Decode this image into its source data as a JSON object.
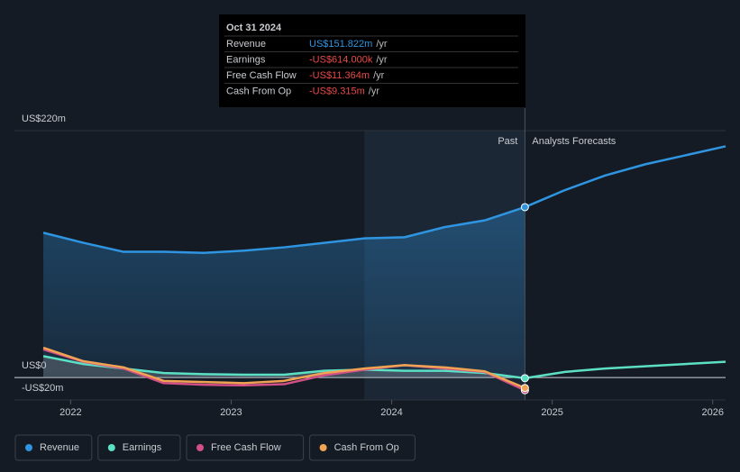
{
  "chart_data": {
    "type": "line",
    "x": [
      2021.83,
      2022.08,
      2022.33,
      2022.58,
      2022.83,
      2023.08,
      2023.33,
      2023.58,
      2023.83,
      2024.08,
      2024.33,
      2024.58,
      2024.83,
      2025.08,
      2025.33,
      2025.58,
      2025.83,
      2026.08
    ],
    "xlim": [
      2021.65,
      2026.08
    ],
    "xticks": [
      2022,
      2023,
      2024,
      2025,
      2026
    ],
    "ylim": [
      -20,
      220
    ],
    "yticks": [
      {
        "value": 220,
        "label": "US$220m"
      },
      {
        "value": 0,
        "label": "US$0"
      },
      {
        "value": -20,
        "label": "-US$20m"
      }
    ],
    "past_label": "Past",
    "forecast_label": "Analysts Forecasts",
    "series": [
      {
        "name": "Revenue",
        "color": "#2f95e1",
        "values": [
          129,
          120,
          112,
          112,
          111,
          113,
          116,
          120,
          124,
          125,
          134,
          140,
          151.822,
          167,
          180,
          190,
          198,
          206
        ]
      },
      {
        "name": "Earnings",
        "color": "#5ce0c3",
        "values": [
          19,
          12,
          8,
          4,
          3,
          2.5,
          2.5,
          6,
          7,
          6,
          6,
          4,
          -0.614,
          5,
          8,
          10,
          12,
          14
        ]
      },
      {
        "name": "Free Cash Flow",
        "color": "#d24f87",
        "values": [
          25,
          14,
          8,
          -5,
          -6.5,
          -7,
          -6,
          2,
          7,
          11,
          8,
          5,
          -11.364,
          null,
          null,
          null,
          null,
          null
        ]
      },
      {
        "name": "Cash From Op",
        "color": "#f0a353",
        "values": [
          26.5,
          14.5,
          9,
          -3,
          -4,
          -5,
          -3,
          4,
          8,
          11,
          9,
          5.5,
          -9.315,
          null,
          null,
          null,
          null,
          null
        ]
      }
    ],
    "tooltip": {
      "date": "Oct 31 2024",
      "rows": [
        {
          "label": "Revenue",
          "value": "US$151.822m",
          "unit": "/yr",
          "color": "#2f95e1"
        },
        {
          "label": "Earnings",
          "value": "-US$614.000k",
          "unit": "/yr",
          "color": "#e84a4a"
        },
        {
          "label": "Free Cash Flow",
          "value": "-US$11.364m",
          "unit": "/yr",
          "color": "#e84a4a"
        },
        {
          "label": "Cash From Op",
          "value": "-US$9.315m",
          "unit": "/yr",
          "color": "#e84a4a"
        }
      ]
    }
  }
}
